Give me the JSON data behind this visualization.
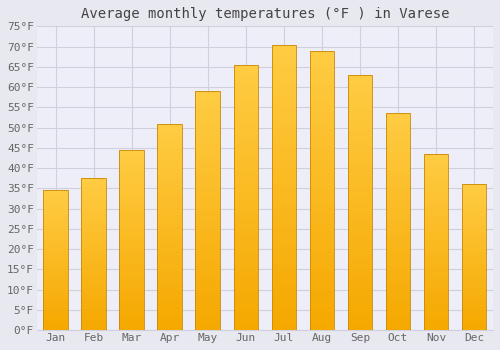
{
  "title": "Average monthly temperatures (°F ) in Varese",
  "months": [
    "Jan",
    "Feb",
    "Mar",
    "Apr",
    "May",
    "Jun",
    "Jul",
    "Aug",
    "Sep",
    "Oct",
    "Nov",
    "Dec"
  ],
  "values": [
    34.5,
    37.5,
    44.5,
    51.0,
    59.0,
    65.5,
    70.5,
    69.0,
    63.0,
    53.5,
    43.5,
    36.0
  ],
  "bar_color_top": "#FFCC44",
  "bar_color_bottom": "#F5A800",
  "bar_edge_color": "#C8880A",
  "background_color": "#E8E8F0",
  "plot_bg_color": "#EEEEF8",
  "grid_color": "#D0D0DC",
  "ylim": [
    0,
    75
  ],
  "ytick_step": 5,
  "title_fontsize": 10,
  "tick_fontsize": 8,
  "tick_color": "#666666",
  "title_color": "#444444"
}
